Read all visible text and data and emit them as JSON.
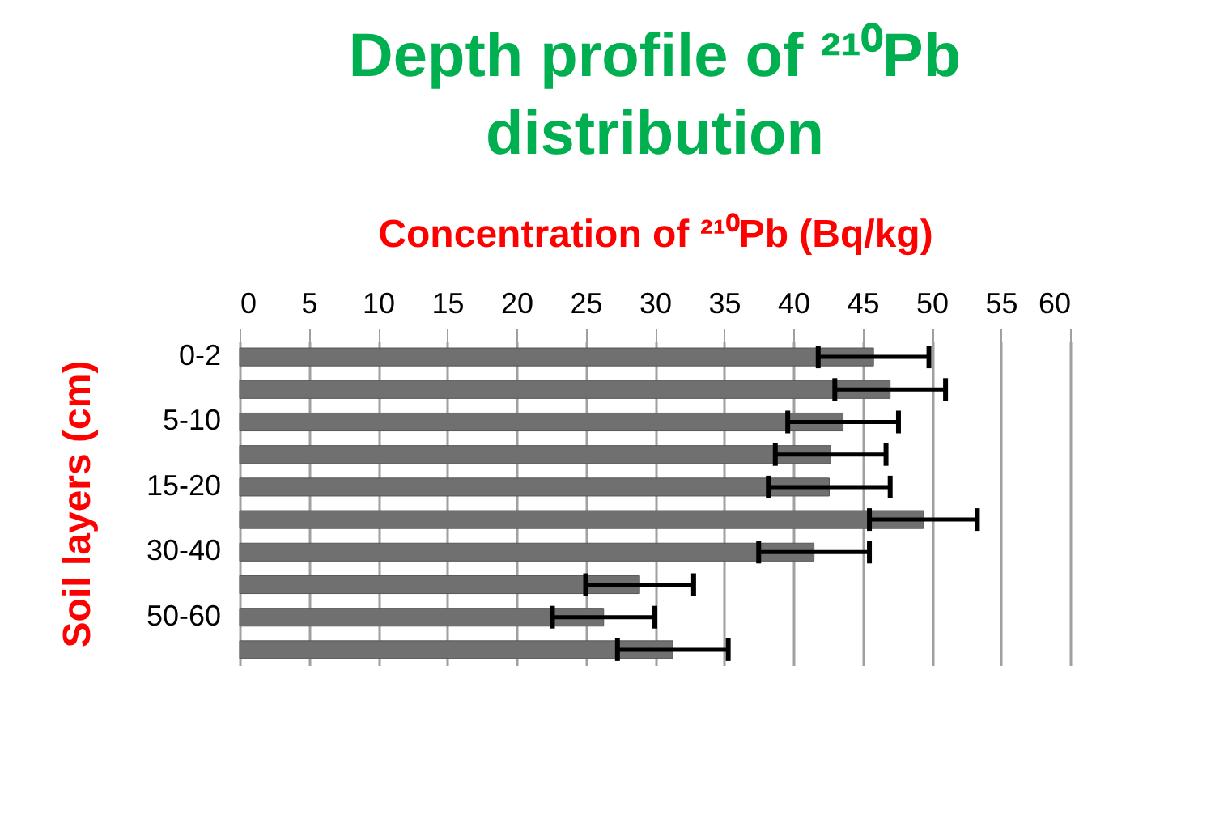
{
  "chart_data": {
    "type": "bar",
    "orientation": "horizontal",
    "title": "Depth profile of ²¹⁰Pb distribution",
    "xlabel": "Concentration of ²¹⁰Pb   (Bq/kg)",
    "ylabel": "Soil layers  (cm)",
    "categories": [
      "0-2",
      null,
      "5-10",
      null,
      "15-20",
      null,
      "30-40",
      null,
      "50-60",
      null
    ],
    "values": [
      45.8,
      47.0,
      43.6,
      42.7,
      42.6,
      49.4,
      41.5,
      28.9,
      26.3,
      31.3
    ],
    "errors": [
      4.0,
      4.0,
      4.0,
      4.0,
      4.4,
      3.9,
      4.0,
      3.9,
      3.7,
      4.0
    ],
    "color": "#707070",
    "xlim": [
      0,
      60
    ],
    "xticks": [
      0,
      5,
      10,
      15,
      20,
      25,
      30,
      35,
      40,
      45,
      50,
      55,
      60
    ],
    "grid": "x"
  }
}
